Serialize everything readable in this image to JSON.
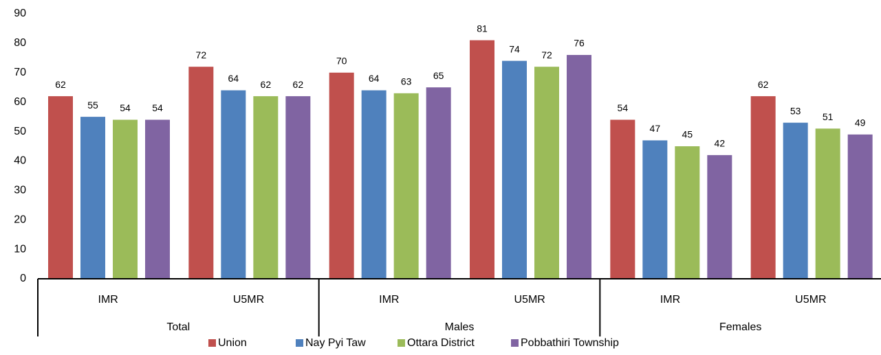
{
  "chart_data": {
    "type": "bar",
    "categories": [
      "IMR",
      "U5MR",
      "IMR",
      "U5MR",
      "IMR",
      "U5MR"
    ],
    "category_groups": [
      "Total",
      "Males",
      "Females"
    ],
    "series": [
      {
        "name": "Union",
        "color": "#c0504d",
        "values": [
          62,
          72,
          70,
          81,
          54,
          62
        ]
      },
      {
        "name": "Nay Pyi Taw",
        "color": "#4f81bd",
        "values": [
          55,
          64,
          64,
          74,
          47,
          53
        ]
      },
      {
        "name": "Ottara District",
        "color": "#9bbb59",
        "values": [
          54,
          62,
          63,
          72,
          45,
          51
        ]
      },
      {
        "name": "Pobbathiri Township",
        "color": "#8064a2",
        "values": [
          54,
          62,
          65,
          76,
          42,
          49
        ]
      }
    ],
    "ylim": [
      0,
      90
    ],
    "yticks": [
      0,
      10,
      20,
      30,
      40,
      50,
      60,
      70,
      80,
      90
    ],
    "grid": false,
    "legend": "bottom",
    "data_labels": true
  }
}
